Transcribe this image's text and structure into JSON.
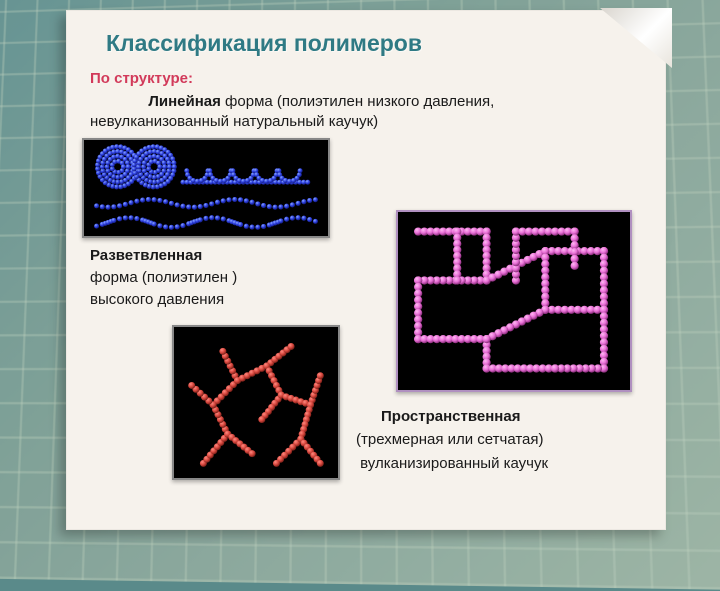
{
  "title": "Классификация полимеров",
  "heading": "По структуре:",
  "linear": {
    "bold": "Линейная",
    "rest": " форма (полиэтилен низкого давления, невулканизованный натуральный каучук)",
    "color": "#2d3fe0",
    "highlight": "#6a8bff",
    "shadow": "#141d80"
  },
  "branched": {
    "l1_bold": "Разветвленная",
    "l2": "форма (полиэтилен )",
    "l3": "высокого давления",
    "color": "#d8483f",
    "highlight": "#ff8a80",
    "shadow": "#7a1f18"
  },
  "spatial": {
    "l1_bold": "Пространственная",
    "l2": "(трехмерная или сетчатая)",
    "l3": "вулканизированный каучук",
    "color": "#e86fd6",
    "highlight": "#ffb8f2",
    "shadow": "#8a2d7b"
  },
  "colors": {
    "title": "#2f7a84",
    "heading": "#d23a5a",
    "paper": "#f6f2ec",
    "text": "#1a1a1a"
  }
}
